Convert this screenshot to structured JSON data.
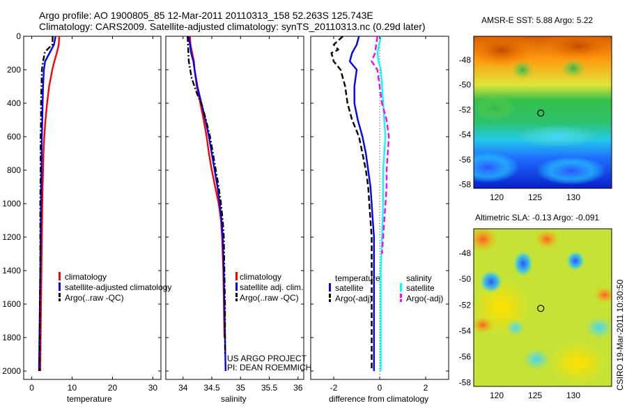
{
  "figure": {
    "title_line1": "Argo profile: AO 1900805_85 12-Mar-2011 20110313_158 52.263S 125.743E",
    "title_line2": "Climatology: CARS2009. Satellite-adjusted climatology: synTS_20110313.nc (0.29d later)",
    "footer_credit": "CSIRO 19-Mar-2011 10:30:50",
    "project_line1": "US ARGO PROJECT",
    "project_line2": "PI: DEAN ROEMMICH"
  },
  "colors": {
    "climatology": "#ff0000",
    "satellite": "#0000ff",
    "argo": "#000000",
    "salinity_satellite": "#00ffff",
    "salinity_argo": "#ff00ff"
  },
  "chart_data": [
    {
      "type": "line",
      "xlabel": "temperature",
      "x_ticks": [
        "0",
        "10",
        "20",
        "30"
      ],
      "ylim": [
        2050,
        0
      ],
      "xlim": [
        -2,
        32
      ],
      "y_ticks": [
        "0",
        "200",
        "400",
        "600",
        "800",
        "1000",
        "1200",
        "1400",
        "1600",
        "1800",
        "2000"
      ],
      "legend": [
        "climatology",
        "satellite-adjusted climatology",
        "Argo(..raw -QC)"
      ],
      "series": [
        {
          "name": "climatology",
          "color": "#ff0000",
          "dash": "solid",
          "points": [
            [
              6.8,
              0
            ],
            [
              6.7,
              50
            ],
            [
              6.2,
              100
            ],
            [
              5.6,
              150
            ],
            [
              5.1,
              200
            ],
            [
              4.3,
              300
            ],
            [
              3.8,
              400
            ],
            [
              3.4,
              500
            ],
            [
              3.1,
              600
            ],
            [
              2.9,
              700
            ],
            [
              2.8,
              800
            ],
            [
              2.7,
              900
            ],
            [
              2.6,
              1000
            ],
            [
              2.5,
              1200
            ],
            [
              2.4,
              1400
            ],
            [
              2.3,
              1600
            ],
            [
              2.2,
              1800
            ],
            [
              2.1,
              2000
            ]
          ]
        },
        {
          "name": "satellite-adjusted climatology",
          "color": "#0000ff",
          "dash": "solid",
          "points": [
            [
              5.9,
              0
            ],
            [
              5.5,
              50
            ],
            [
              4.4,
              100
            ],
            [
              3.3,
              150
            ],
            [
              3.0,
              200
            ],
            [
              2.8,
              300
            ],
            [
              2.7,
              400
            ],
            [
              2.6,
              500
            ],
            [
              2.5,
              600
            ],
            [
              2.4,
              800
            ],
            [
              2.3,
              1000
            ],
            [
              2.2,
              1200
            ],
            [
              2.1,
              1400
            ],
            [
              2.0,
              1600
            ],
            [
              1.9,
              1800
            ],
            [
              1.8,
              2000
            ]
          ]
        },
        {
          "name": "Argo(..raw -QC)",
          "color": "#000000",
          "dash": "dashdot",
          "points": [
            [
              5.2,
              0
            ],
            [
              5.1,
              50
            ],
            [
              3.8,
              80
            ],
            [
              3.2,
              100
            ],
            [
              2.8,
              150
            ],
            [
              2.5,
              200
            ],
            [
              2.4,
              300
            ],
            [
              2.3,
              400
            ],
            [
              2.3,
              500
            ],
            [
              2.2,
              600
            ],
            [
              2.2,
              800
            ],
            [
              2.1,
              1000
            ],
            [
              2.1,
              1200
            ],
            [
              2.1,
              1400
            ],
            [
              2.0,
              1600
            ],
            [
              2.0,
              1800
            ],
            [
              1.9,
              2000
            ]
          ]
        }
      ]
    },
    {
      "type": "line",
      "xlabel": "salinity",
      "x_ticks": [
        "34",
        "34.5",
        "35",
        "35.5",
        "36"
      ],
      "xlim": [
        33.7,
        36.1
      ],
      "ylim": [
        2050,
        0
      ],
      "legend": [
        "climatology",
        "satellite adj. clim.",
        "Argo(..raw -QC)"
      ],
      "series": [
        {
          "name": "climatology",
          "color": "#ff0000",
          "dash": "solid",
          "points": [
            [
              34.12,
              0
            ],
            [
              34.13,
              50
            ],
            [
              34.16,
              100
            ],
            [
              34.19,
              150
            ],
            [
              34.2,
              200
            ],
            [
              34.24,
              300
            ],
            [
              34.3,
              400
            ],
            [
              34.36,
              500
            ],
            [
              34.41,
              600
            ],
            [
              34.45,
              700
            ],
            [
              34.5,
              800
            ],
            [
              34.56,
              900
            ],
            [
              34.62,
              1000
            ],
            [
              34.66,
              1100
            ],
            [
              34.68,
              1200
            ],
            [
              34.7,
              1400
            ],
            [
              34.71,
              1600
            ],
            [
              34.72,
              1800
            ]
          ]
        },
        {
          "name": "satellite adj. clim.",
          "color": "#0000ff",
          "dash": "solid",
          "points": [
            [
              34.1,
              0
            ],
            [
              34.12,
              50
            ],
            [
              34.14,
              100
            ],
            [
              34.18,
              150
            ],
            [
              34.2,
              200
            ],
            [
              34.25,
              300
            ],
            [
              34.32,
              400
            ],
            [
              34.39,
              500
            ],
            [
              34.45,
              600
            ],
            [
              34.5,
              700
            ],
            [
              34.55,
              800
            ],
            [
              34.6,
              900
            ],
            [
              34.64,
              1000
            ],
            [
              34.67,
              1100
            ],
            [
              34.69,
              1200
            ],
            [
              34.71,
              1400
            ],
            [
              34.72,
              1600
            ],
            [
              34.73,
              1800
            ],
            [
              34.74,
              2000
            ]
          ]
        },
        {
          "name": "Argo(..raw -QC)",
          "color": "#000000",
          "dash": "dashdot",
          "points": [
            [
              34.08,
              0
            ],
            [
              34.09,
              80
            ],
            [
              34.1,
              150
            ],
            [
              34.15,
              250
            ],
            [
              34.25,
              350
            ],
            [
              34.32,
              400
            ],
            [
              34.4,
              500
            ],
            [
              34.47,
              600
            ],
            [
              34.52,
              700
            ],
            [
              34.57,
              800
            ],
            [
              34.62,
              900
            ],
            [
              34.66,
              1000
            ],
            [
              34.69,
              1100
            ],
            [
              34.71,
              1200
            ],
            [
              34.72,
              1400
            ],
            [
              34.73,
              1600
            ],
            [
              34.73,
              1800
            ],
            [
              34.73,
              1900
            ]
          ]
        }
      ]
    },
    {
      "type": "line",
      "xlabel": "difference from climatology",
      "x_ticks": [
        "-2",
        "0",
        "2"
      ],
      "xlim": [
        -3.0,
        3.0
      ],
      "ylim": [
        2050,
        0
      ],
      "legend": [
        "temperature",
        "satellite",
        "Argo(-adj)",
        "salinity",
        "satellite",
        "Argo(-adj)"
      ],
      "series": [
        {
          "name": "satellite",
          "color": "#0000ff",
          "dash": "solid",
          "points": [
            [
              -0.9,
              0
            ],
            [
              -1.0,
              50
            ],
            [
              -1.2,
              100
            ],
            [
              -1.3,
              150
            ],
            [
              -1.0,
              200
            ],
            [
              -1.1,
              300
            ],
            [
              -1.1,
              400
            ],
            [
              -0.95,
              500
            ],
            [
              -0.75,
              600
            ],
            [
              -0.6,
              700
            ],
            [
              -0.5,
              800
            ],
            [
              -0.4,
              900
            ],
            [
              -0.35,
              1000
            ],
            [
              -0.3,
              1100
            ],
            [
              -0.25,
              1200
            ],
            [
              -0.25,
              1400
            ],
            [
              -0.25,
              1600
            ],
            [
              -0.25,
              1800
            ],
            [
              -0.25,
              2000
            ]
          ]
        },
        {
          "name": "Argo(-adj)",
          "color": "#000000",
          "dash": "dashed",
          "points": [
            [
              -1.6,
              0
            ],
            [
              -2.0,
              50
            ],
            [
              -1.8,
              80
            ],
            [
              -2.1,
              100
            ],
            [
              -2.0,
              150
            ],
            [
              -1.7,
              200
            ],
            [
              -1.5,
              300
            ],
            [
              -1.4,
              400
            ],
            [
              -1.2,
              500
            ],
            [
              -0.9,
              600
            ],
            [
              -0.75,
              700
            ],
            [
              -0.6,
              800
            ],
            [
              -0.5,
              900
            ],
            [
              -0.45,
              1000
            ],
            [
              -0.4,
              1100
            ],
            [
              -0.35,
              1200
            ],
            [
              -0.35,
              1400
            ],
            [
              -0.35,
              1600
            ],
            [
              -0.35,
              1800
            ],
            [
              -0.35,
              2000
            ]
          ]
        },
        {
          "name": "satellite",
          "color": "#00ffff",
          "dash": "solid",
          "points": [
            [
              0.05,
              0
            ],
            [
              -0.1,
              100
            ],
            [
              -0.05,
              150
            ],
            [
              0.05,
              200
            ],
            [
              0.1,
              300
            ],
            [
              0.15,
              400
            ],
            [
              0.2,
              500
            ],
            [
              0.25,
              600
            ],
            [
              0.2,
              700
            ],
            [
              0.15,
              800
            ],
            [
              0.15,
              900
            ],
            [
              0.15,
              1000
            ],
            [
              0.1,
              1200
            ],
            [
              0.05,
              1400
            ],
            [
              0.05,
              1600
            ],
            [
              0.05,
              1800
            ],
            [
              0.05,
              2000
            ]
          ]
        },
        {
          "name": "Argo(-adj)",
          "color": "#ff00ff",
          "dash": "dashed",
          "points": [
            [
              -0.1,
              0
            ],
            [
              -0.2,
              100
            ],
            [
              -0.35,
              150
            ],
            [
              -0.1,
              200
            ],
            [
              0.0,
              300
            ],
            [
              0.1,
              400
            ],
            [
              0.3,
              500
            ],
            [
              0.4,
              600
            ],
            [
              0.35,
              700
            ],
            [
              0.3,
              800
            ],
            [
              0.3,
              900
            ],
            [
              0.25,
              1000
            ],
            [
              0.2,
              1100
            ],
            [
              0.15,
              1200
            ],
            [
              0.1,
              1300
            ]
          ]
        }
      ]
    },
    {
      "type": "heatmap",
      "title": "AMSR-E SST: 5.88 Argo: 5.22",
      "x_ticks": [
        "120",
        "125",
        "130"
      ],
      "y_ticks": [
        "-48",
        "-50",
        "-52",
        "-54",
        "-56",
        "-58"
      ],
      "xlim": [
        117,
        135
      ],
      "ylim": [
        -58.3,
        -46.1
      ],
      "marker": {
        "lon": 125.743,
        "lat": -52.263
      }
    },
    {
      "type": "heatmap",
      "title": "Altimetric SLA: -0.13 Argo: -0.091",
      "x_ticks": [
        "120",
        "125",
        "130"
      ],
      "y_ticks": [
        "-48",
        "-50",
        "-52",
        "-54",
        "-56",
        "-58"
      ],
      "xlim": [
        117,
        135
      ],
      "ylim": [
        -58.3,
        -46.1
      ],
      "marker": {
        "lon": 125.743,
        "lat": -52.263
      }
    }
  ]
}
